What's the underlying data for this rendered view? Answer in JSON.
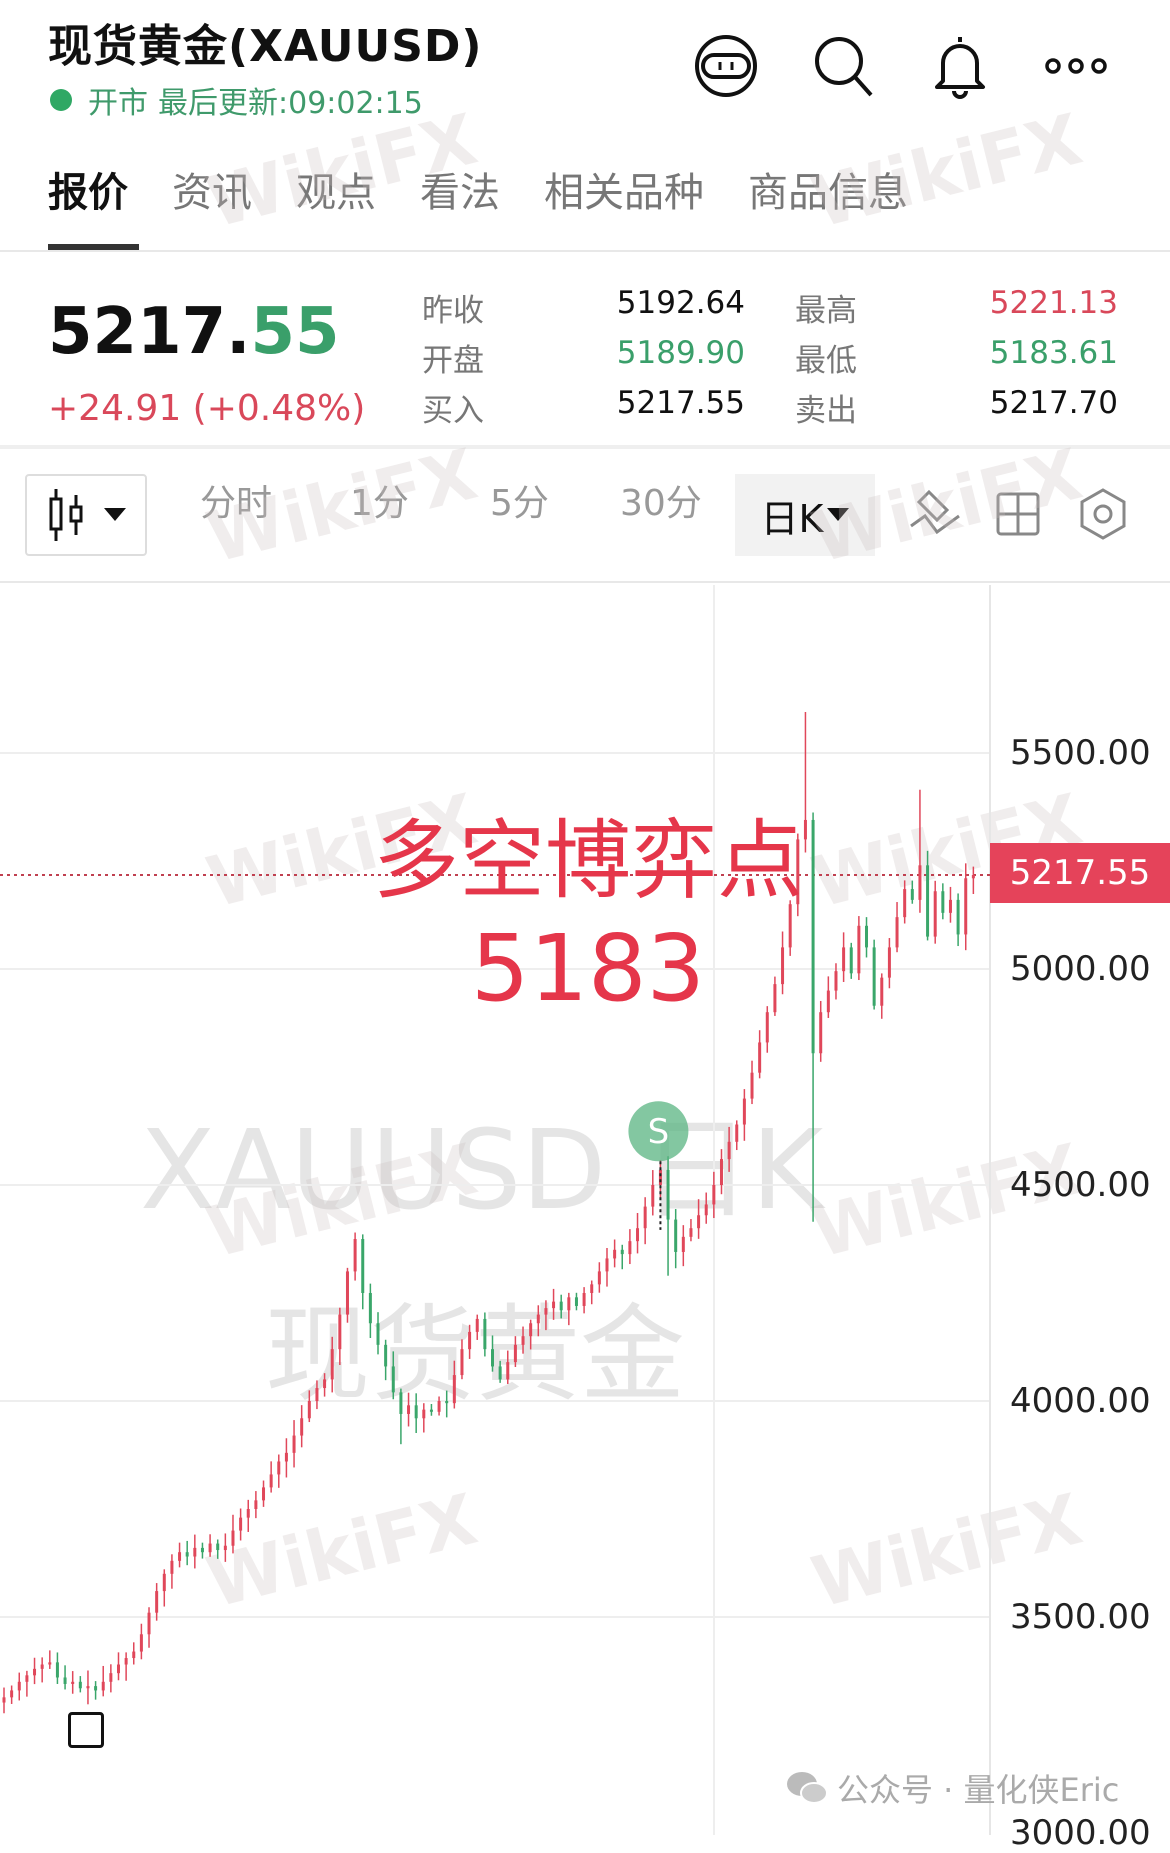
{
  "header": {
    "title": "现货黄金(XAUUSD)",
    "status": "开市",
    "last_update_label": "最后更新:09:02:15",
    "icons": [
      "robot-assistant-icon",
      "search-icon",
      "bell-icon",
      "more-icon"
    ]
  },
  "tabs": [
    {
      "label": "报价",
      "active": true
    },
    {
      "label": "资讯",
      "active": false
    },
    {
      "label": "观点",
      "active": false
    },
    {
      "label": "看法",
      "active": false
    },
    {
      "label": "相关品种",
      "active": false
    },
    {
      "label": "商品信息",
      "active": false
    }
  ],
  "quote": {
    "price_int": "5217.",
    "price_dec": "55",
    "change": "+24.91 (+0.48%)",
    "rows": [
      {
        "l1": "昨收",
        "v1": "5192.64",
        "c1": "neutral",
        "l2": "最高",
        "v2": "5221.13",
        "c2": "up"
      },
      {
        "l1": "开盘",
        "v1": "5189.90",
        "c1": "down",
        "l2": "最低",
        "v2": "5183.61",
        "c2": "down"
      },
      {
        "l1": "买入",
        "v1": "5217.55",
        "c1": "neutral",
        "l2": "卖出",
        "v2": "5217.70",
        "c2": "neutral"
      }
    ]
  },
  "toolbar": {
    "periods": [
      "分时",
      "1分",
      "5分",
      "30分"
    ],
    "selected_period": "日K",
    "icons": [
      "candlestick-type-icon",
      "draw-tool-icon",
      "layout-grid-icon",
      "settings-icon"
    ]
  },
  "colors": {
    "up": "#e0475a",
    "down": "#3aa66a",
    "accent": "#e5435a",
    "status": "#2fa864"
  },
  "chart_data": {
    "type": "candlestick",
    "y_ticks": [
      "5500.00",
      "5000.00",
      "4500.00",
      "4000.00",
      "3500.00",
      "3000.00"
    ],
    "ylim": [
      3000,
      5700
    ],
    "current_price": "5217.55",
    "closes": [
      3314,
      3330,
      3350,
      3365,
      3380,
      3390,
      3395,
      3360,
      3345,
      3350,
      3335,
      3340,
      3330,
      3350,
      3370,
      3390,
      3405,
      3420,
      3460,
      3510,
      3560,
      3600,
      3630,
      3650,
      3640,
      3660,
      3650,
      3670,
      3655,
      3665,
      3700,
      3730,
      3750,
      3770,
      3800,
      3830,
      3860,
      3880,
      3920,
      3960,
      4000,
      4030,
      4050,
      4120,
      4200,
      4300,
      4375,
      4250,
      4180,
      4130,
      4080,
      4020,
      3970,
      3990,
      3960,
      3980,
      3975,
      4000,
      3995,
      4060,
      4120,
      4160,
      4190,
      4120,
      4080,
      4050,
      4090,
      4130,
      4150,
      4180,
      4200,
      4215,
      4230,
      4210,
      4240,
      4220,
      4250,
      4270,
      4300,
      4330,
      4350,
      4340,
      4370,
      4400,
      4450,
      4500,
      4535,
      4420,
      4345,
      4380,
      4400,
      4430,
      4455,
      4500,
      4560,
      4600,
      4640,
      4700,
      4760,
      4830,
      4900,
      4965,
      5050,
      5150,
      5300,
      5345,
      4805,
      4900,
      4950,
      4995,
      5050,
      4990,
      5100,
      5050,
      4915,
      4980,
      5050,
      5120,
      5185,
      5160,
      5240,
      5075,
      5180,
      5130,
      5160,
      5080,
      5210,
      5217.55
    ],
    "notable_highs": {
      "105": 5595,
      "120": 5415,
      "46": 4390
    },
    "notable_lows": {
      "106": 4415,
      "52": 3900,
      "87": 4290
    },
    "signal_marker": {
      "label": "S",
      "bar": 86
    },
    "annotation": [
      "多空博弈点",
      "5183"
    ],
    "watermarks": [
      "XAUUSD 日K",
      "现货黄金"
    ]
  },
  "watermark_logo": "WikiFX",
  "footer": {
    "credit": "公众号 · 量化侠Eric"
  }
}
